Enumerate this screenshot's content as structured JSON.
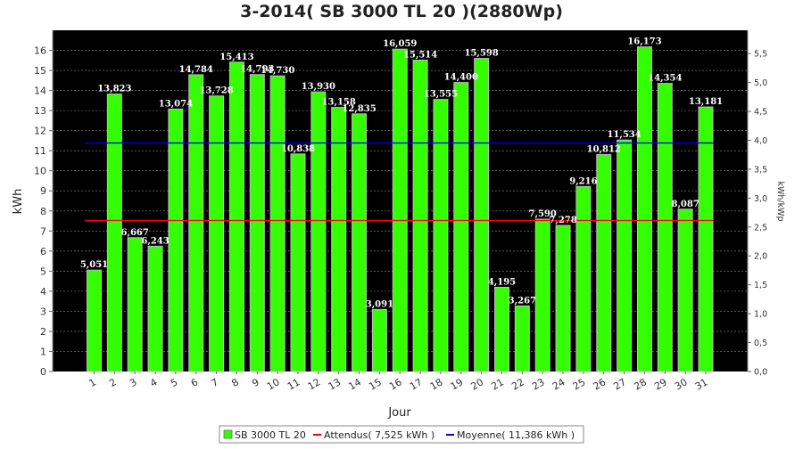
{
  "chart_data": {
    "type": "bar",
    "title": "3-2014( SB 3000 TL 20 )(2880Wp)",
    "xlabel": "Jour",
    "ylabel": "kWh",
    "ylabel_right": "kWh/kWp",
    "categories": [
      "1",
      "2",
      "3",
      "4",
      "5",
      "6",
      "7",
      "8",
      "9",
      "10",
      "11",
      "12",
      "13",
      "14",
      "15",
      "16",
      "17",
      "18",
      "19",
      "20",
      "21",
      "22",
      "23",
      "24",
      "25",
      "26",
      "27",
      "28",
      "29",
      "30",
      "31"
    ],
    "values": [
      5.051,
      13.823,
      6.667,
      6.243,
      13.074,
      14.784,
      13.728,
      15.413,
      14.793,
      14.73,
      10.838,
      13.93,
      13.158,
      12.835,
      3.091,
      16.059,
      15.514,
      13.555,
      14.4,
      15.598,
      4.195,
      3.267,
      7.59,
      7.278,
      9.216,
      10.812,
      11.534,
      16.173,
      14.354,
      8.087,
      13.181
    ],
    "value_labels": [
      "5,051",
      "13,823",
      "6,667",
      "6,243",
      "13,074",
      "14,784",
      "13,728",
      "15,413",
      "14,793",
      "14,730",
      "10,838",
      "13,930",
      "13,158",
      "12,835",
      "3,091",
      "16,059",
      "15,514",
      "13,555",
      "14,400",
      "15,598",
      "4,195",
      "3,267",
      "7,590",
      "7,278",
      "9,216",
      "10,812",
      "11,534",
      "16,173",
      "14,354",
      "8,087",
      "13,181"
    ],
    "ylim": [
      0,
      17
    ],
    "yticks": [
      "0",
      "1",
      "2",
      "3",
      "4",
      "5",
      "6",
      "7",
      "8",
      "9",
      "10",
      "11",
      "12",
      "13",
      "14",
      "15",
      "16"
    ],
    "y2lim": [
      0,
      5.9028
    ],
    "y2ticks": [
      "0,0",
      "0,5",
      "1,0",
      "1,5",
      "2,0",
      "2,5",
      "3,0",
      "3,5",
      "4,0",
      "4,5",
      "5,0",
      "5,5"
    ],
    "lines": [
      {
        "name": "Attendus( 7,525 kWh )",
        "value": 7.525,
        "color": "#ff0000"
      },
      {
        "name": "Moyenne( 11,386 kWh )",
        "value": 11.386,
        "color": "#0000ff"
      }
    ],
    "series": [
      {
        "name": "SB 3000 TL 20",
        "color": "#33ff00"
      }
    ],
    "plot_background": "#000000",
    "grid": true,
    "legend_position": "bottom-center"
  }
}
